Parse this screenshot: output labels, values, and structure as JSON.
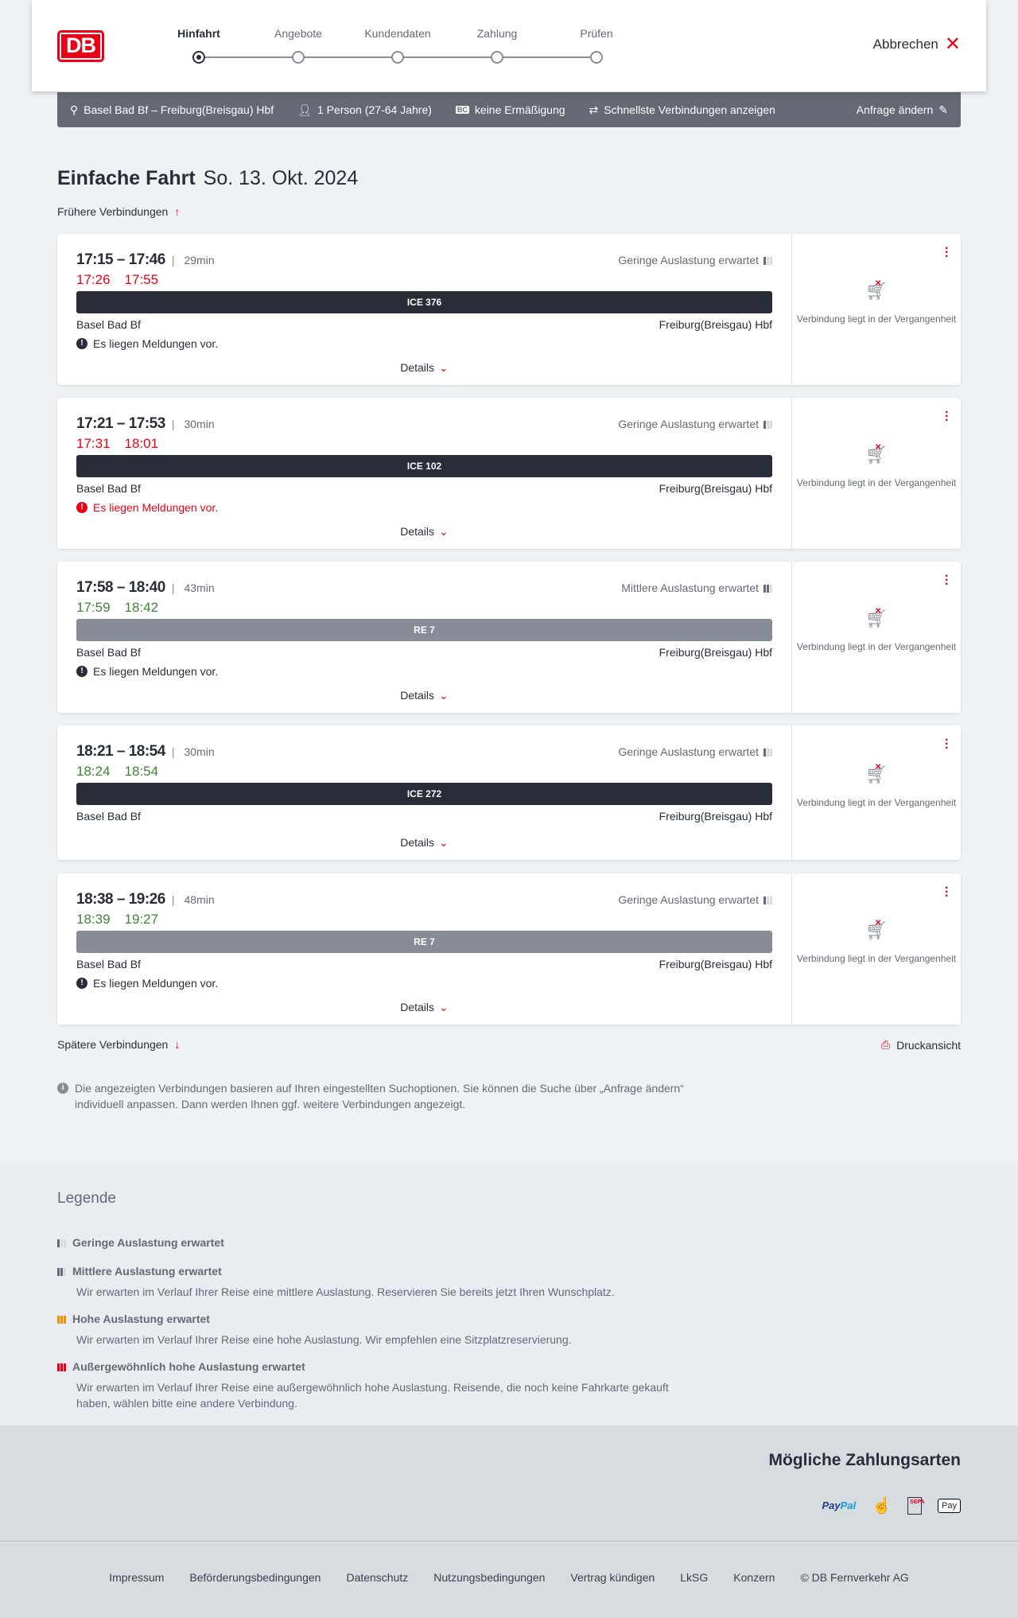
{
  "header": {
    "logo": "DB",
    "steps": [
      "Hinfahrt",
      "Angebote",
      "Kundendaten",
      "Zahlung",
      "Prüfen"
    ],
    "active_step": 0,
    "cancel": "Abbrechen"
  },
  "summary": {
    "route": "Basel Bad Bf – Freiburg(Breisgau) Hbf",
    "passengers": "1 Person (27-64 Jahre)",
    "discount_badge": "BC",
    "discount": "keine Ermäßigung",
    "fastest": "Schnellste Verbindungen anzeigen",
    "edit": "Anfrage ändern"
  },
  "page": {
    "title": "Einfache Fahrt",
    "date": "So. 13. Okt. 2024",
    "earlier": "Frühere Verbindungen",
    "later": "Spätere Verbindungen",
    "print": "Druckansicht",
    "details": "Details",
    "past_note": "Verbindung liegt in der Vergangenheit",
    "info": "Die angezeigten Verbindungen basieren auf Ihren eingestellten Suchoptionen. Sie können die Suche über „Anfrage ändern“ individuell anpassen. Dann werden Ihnen ggf. weitere Verbindungen angezeigt."
  },
  "connections": [
    {
      "time": "17:15 – 17:46",
      "duration": "29min",
      "rt_dep": "17:26",
      "rt_arr": "17:55",
      "rt_color": "#ec0016",
      "load": "Geringe Auslastung erwartet",
      "load_level": 1,
      "train": "ICE 376",
      "train_color": "#282d37",
      "from": "Basel Bad Bf",
      "to": "Freiburg(Breisgau) Hbf",
      "message": "Es liegen Meldungen vor.",
      "message_type": "info"
    },
    {
      "time": "17:21 – 17:53",
      "duration": "30min",
      "rt_dep": "17:31",
      "rt_arr": "18:01",
      "rt_color": "#ec0016",
      "load": "Geringe Auslastung erwartet",
      "load_level": 1,
      "train": "ICE 102",
      "train_color": "#282d37",
      "from": "Basel Bad Bf",
      "to": "Freiburg(Breisgau) Hbf",
      "message": "Es liegen Meldungen vor.",
      "message_type": "error"
    },
    {
      "time": "17:58 – 18:40",
      "duration": "43min",
      "rt_dep": "17:59",
      "rt_arr": "18:42",
      "rt_color": "#408335",
      "load": "Mittlere Auslastung erwartet",
      "load_level": 2,
      "train": "RE 7",
      "train_color": "#878c96",
      "from": "Basel Bad Bf",
      "to": "Freiburg(Breisgau) Hbf",
      "message": "Es liegen Meldungen vor.",
      "message_type": "info"
    },
    {
      "time": "18:21 – 18:54",
      "duration": "30min",
      "rt_dep": "18:24",
      "rt_arr": "18:54",
      "rt_color": "#408335",
      "load": "Geringe Auslastung erwartet",
      "load_level": 1,
      "train": "ICE 272",
      "train_color": "#282d37",
      "from": "Basel Bad Bf",
      "to": "Freiburg(Breisgau) Hbf",
      "message": null,
      "message_type": null
    },
    {
      "time": "18:38 – 19:26",
      "duration": "48min",
      "rt_dep": "18:39",
      "rt_arr": "19:27",
      "rt_color": "#408335",
      "load": "Geringe Auslastung erwartet",
      "load_level": 1,
      "train": "RE 7",
      "train_color": "#878c96",
      "from": "Basel Bad Bf",
      "to": "Freiburg(Breisgau) Hbf",
      "message": "Es liegen Meldungen vor.",
      "message_type": "info"
    }
  ],
  "legend": {
    "title": "Legende",
    "items": [
      {
        "label": "Geringe Auslastung erwartet",
        "text": "",
        "color": "#646973"
      },
      {
        "label": "Mittlere Auslastung erwartet",
        "text": "Wir erwarten im Verlauf Ihrer Reise eine mittlere Auslastung. Reservieren Sie bereits jetzt Ihren Wunschplatz.",
        "color": "#646973"
      },
      {
        "label": "Hohe Auslastung erwartet",
        "text": "Wir erwarten im Verlauf Ihrer Reise eine hohe Auslastung. Wir empfehlen eine Sitzplatzreservierung.",
        "color": "#f39200"
      },
      {
        "label": "Außergewöhnlich hohe Auslastung erwartet",
        "text": "Wir erwarten im Verlauf Ihrer Reise eine außergewöhnlich hohe Auslastung. Reisende, die noch keine Fahrkarte gekauft haben, wählen bitte eine andere Verbindung.",
        "color": "#ec0016"
      }
    ]
  },
  "payment": {
    "title": "Mögliche Zahlungsarten",
    "methods": [
      "PayPal",
      "Kreditkarte",
      "SEPA",
      "Apple Pay"
    ]
  },
  "footer": {
    "links": [
      "Impressum",
      "Beförderungsbedingungen",
      "Datenschutz",
      "Nutzungsbedingungen",
      "Vertrag kündigen",
      "LkSG",
      "Konzern",
      "© DB Fernverkehr AG"
    ]
  }
}
